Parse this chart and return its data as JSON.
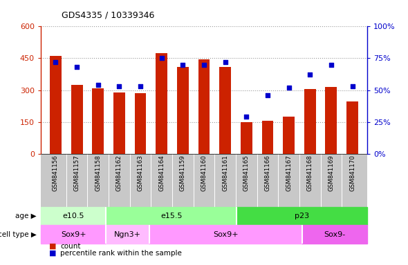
{
  "title": "GDS4335 / 10339346",
  "samples": [
    "GSM841156",
    "GSM841157",
    "GSM841158",
    "GSM841162",
    "GSM841163",
    "GSM841164",
    "GSM841159",
    "GSM841160",
    "GSM841161",
    "GSM841165",
    "GSM841166",
    "GSM841167",
    "GSM841168",
    "GSM841169",
    "GSM841170"
  ],
  "counts": [
    460,
    325,
    308,
    290,
    285,
    475,
    410,
    445,
    410,
    148,
    155,
    175,
    305,
    315,
    245
  ],
  "percentiles": [
    72,
    68,
    54,
    53,
    53,
    75,
    70,
    70,
    72,
    29,
    46,
    52,
    62,
    70,
    53
  ],
  "bar_color": "#cc2200",
  "dot_color": "#0000cc",
  "ylim_left": [
    0,
    600
  ],
  "ylim_right": [
    0,
    100
  ],
  "yticks_left": [
    0,
    150,
    300,
    450,
    600
  ],
  "yticks_right": [
    0,
    25,
    50,
    75,
    100
  ],
  "yticklabels_left": [
    "0",
    "150",
    "300",
    "450",
    "600"
  ],
  "yticklabels_right": [
    "0%",
    "25%",
    "50%",
    "75%",
    "100%"
  ],
  "age_groups": [
    {
      "label": "e10.5",
      "start": 0,
      "end": 3,
      "color": "#ccffcc"
    },
    {
      "label": "e15.5",
      "start": 3,
      "end": 9,
      "color": "#99ff99"
    },
    {
      "label": "p23",
      "start": 9,
      "end": 15,
      "color": "#44dd44"
    }
  ],
  "cell_type_groups": [
    {
      "label": "Sox9+",
      "start": 0,
      "end": 3,
      "color": "#ff99ff"
    },
    {
      "label": "Ngn3+",
      "start": 3,
      "end": 5,
      "color": "#ffbbff"
    },
    {
      "label": "Sox9+",
      "start": 5,
      "end": 12,
      "color": "#ff99ff"
    },
    {
      "label": "Sox9-",
      "start": 12,
      "end": 15,
      "color": "#ee66ee"
    }
  ],
  "left_axis_color": "#cc2200",
  "right_axis_color": "#0000cc",
  "grid_color": "#999999",
  "tick_area_color": "#c8c8c8",
  "bar_width": 0.55
}
